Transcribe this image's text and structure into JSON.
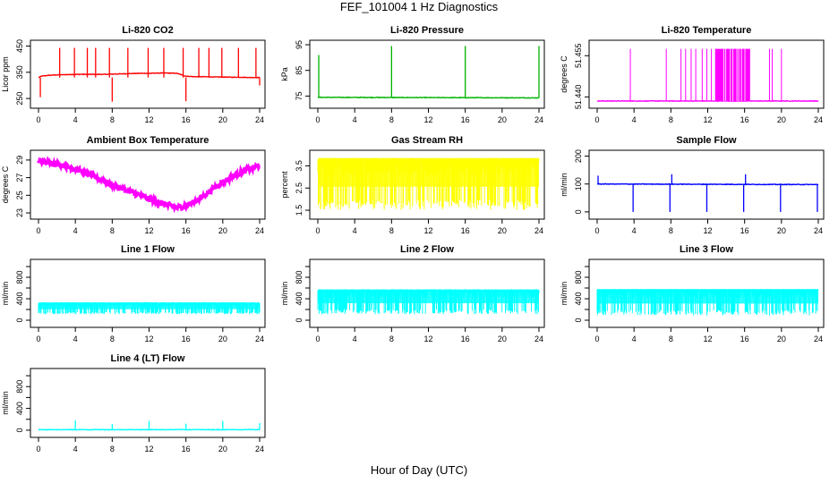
{
  "figure": {
    "title": "FEF_101004  1 Hz Diagnostics",
    "xlabel": "Hour of Day (UTC)"
  },
  "chart_data": [
    {
      "type": "line",
      "title": "Li-820 CO2",
      "ylabel": "Licor ppm",
      "color": "#ff0000",
      "xlim": [
        0,
        24
      ],
      "xticks": [
        0,
        4,
        8,
        12,
        16,
        20,
        24
      ],
      "ylim": [
        230,
        455
      ],
      "yticks": [
        250,
        350,
        450
      ],
      "series": [
        {
          "x": [
            0,
            0.3,
            1,
            2,
            3,
            4,
            5,
            6,
            7,
            8,
            9,
            10,
            11,
            12,
            13,
            14,
            15,
            16,
            17,
            18,
            19,
            20,
            21,
            22,
            23,
            24
          ],
          "y": [
            330,
            335,
            338,
            340,
            341,
            342,
            342,
            342,
            342,
            343,
            344,
            345,
            346,
            346,
            347,
            347,
            346,
            335,
            333,
            333,
            332,
            332,
            331,
            331,
            330,
            330
          ]
        }
      ],
      "spikes": [
        {
          "x": 0.2,
          "to": 255
        },
        {
          "x": 2.3,
          "to": 443
        },
        {
          "x": 3.9,
          "to": 443
        },
        {
          "x": 5.3,
          "to": 443
        },
        {
          "x": 6.2,
          "to": 443
        },
        {
          "x": 7.7,
          "to": 443
        },
        {
          "x": 8.0,
          "to": 238
        },
        {
          "x": 9.7,
          "to": 443
        },
        {
          "x": 11.9,
          "to": 443
        },
        {
          "x": 13.6,
          "to": 443
        },
        {
          "x": 15.7,
          "to": 443
        },
        {
          "x": 16.0,
          "to": 240
        },
        {
          "x": 17.4,
          "to": 443
        },
        {
          "x": 18.5,
          "to": 443
        },
        {
          "x": 19.9,
          "to": 443
        },
        {
          "x": 21.7,
          "to": 443
        },
        {
          "x": 23.6,
          "to": 443
        },
        {
          "x": 24.0,
          "to": 300
        }
      ]
    },
    {
      "type": "line",
      "title": "Li-820 Pressure",
      "ylabel": "kPa",
      "color": "#00b400",
      "xlim": [
        0,
        24
      ],
      "xticks": [
        0,
        4,
        8,
        12,
        16,
        20,
        24
      ],
      "ylim": [
        72,
        95
      ],
      "yticks": [
        75,
        85,
        95
      ],
      "series": [
        {
          "x": [
            0,
            24
          ],
          "y": [
            74.5,
            74.3
          ]
        }
      ],
      "spikes": [
        {
          "x": 0.1,
          "to": 91
        },
        {
          "x": 8.0,
          "to": 94.5
        },
        {
          "x": 16.0,
          "to": 94.5
        },
        {
          "x": 24.0,
          "to": 94.5
        }
      ]
    },
    {
      "type": "line",
      "title": "Li-820 Temperature",
      "ylabel": "degrees C",
      "color": "#ff00ff",
      "xlim": [
        0,
        24
      ],
      "xticks": [
        0,
        4,
        8,
        12,
        16,
        20,
        24
      ],
      "ylim": [
        51.4375,
        51.459
      ],
      "yticks": [
        51.44,
        51.455
      ],
      "yticklabels": [
        "51.440",
        "51.455"
      ],
      "extra_tick_labels": [
        "51.455"
      ],
      "series": [
        {
          "x": [
            0,
            24
          ],
          "y": [
            51.4385,
            51.4385
          ]
        }
      ],
      "spikes_x": [
        3.6,
        7.5,
        9.1,
        9.6,
        10.2,
        10.7,
        11.4,
        11.9,
        12.4,
        18.7,
        19.0,
        20.0
      ],
      "spike_to": 51.4575,
      "dense_band_x": [
        12.8,
        16.6
      ]
    },
    {
      "type": "line",
      "title": "Ambient Box Temperature",
      "ylabel": "degrees C",
      "color": "#ff00ff",
      "xlim": [
        0,
        24
      ],
      "xticks": [
        0,
        4,
        8,
        12,
        16,
        20,
        24
      ],
      "ylim": [
        22.8,
        29.6
      ],
      "yticks": [
        23,
        25,
        27,
        29
      ],
      "series": [
        {
          "x": [
            0,
            1,
            2,
            3,
            4,
            5,
            6,
            7,
            8,
            9,
            10,
            11,
            12,
            13,
            14,
            15,
            16,
            17,
            18,
            19,
            20,
            21,
            22,
            23,
            24
          ],
          "y": [
            28.8,
            28.8,
            28.6,
            28.3,
            28.0,
            27.6,
            27.2,
            26.7,
            26.2,
            25.8,
            25.4,
            25.0,
            24.6,
            24.2,
            23.9,
            23.6,
            23.8,
            24.3,
            25.0,
            25.8,
            26.5,
            27.1,
            27.6,
            28.0,
            28.4
          ]
        }
      ],
      "noise": 0.3
    },
    {
      "type": "line",
      "title": "Gas Stream RH",
      "ylabel": "percent",
      "color": "#ffff00",
      "xlim": [
        0,
        24
      ],
      "xticks": [
        0,
        4,
        8,
        12,
        16,
        20,
        24
      ],
      "ylim": [
        1.3,
        4.0
      ],
      "yticks": [
        1.5,
        2.5,
        3.5
      ],
      "series": [
        {
          "x": [
            0,
            24
          ],
          "y": [
            3.6,
            3.6
          ]
        }
      ],
      "band": [
        1.5,
        3.85
      ]
    },
    {
      "type": "line",
      "title": "Sample Flow",
      "ylabel": "ml/min",
      "color": "#0000ff",
      "xlim": [
        0,
        24
      ],
      "xticks": [
        0,
        4,
        8,
        12,
        16,
        20,
        24
      ],
      "ylim": [
        -10,
        205
      ],
      "yticks": [
        0,
        100,
        200
      ],
      "series": [
        {
          "x": [
            0,
            24
          ],
          "y": [
            100,
            98
          ]
        }
      ],
      "spikes": [
        {
          "x": 0.1,
          "to": 130
        },
        {
          "x": 3.9,
          "to": 0
        },
        {
          "x": 7.9,
          "to": 0
        },
        {
          "x": 8.1,
          "to": 135
        },
        {
          "x": 11.9,
          "to": 0
        },
        {
          "x": 15.9,
          "to": 0
        },
        {
          "x": 16.1,
          "to": 135
        },
        {
          "x": 19.9,
          "to": 0
        },
        {
          "x": 23.9,
          "to": 0
        }
      ]
    },
    {
      "type": "line",
      "title": "Line 1 Flow",
      "ylabel": "ml/min",
      "color": "#00ffff",
      "xlim": [
        0,
        24
      ],
      "xticks": [
        0,
        4,
        8,
        12,
        16,
        20,
        24
      ],
      "ylim": [
        -50,
        1050
      ],
      "yticks": [
        0,
        200,
        400,
        600,
        800,
        1000
      ],
      "yticklabels": [
        "0",
        "400",
        "800"
      ],
      "series": [
        {
          "x": [
            0,
            24
          ],
          "y": [
            320,
            320
          ]
        }
      ],
      "band": [
        110,
        320
      ]
    },
    {
      "type": "line",
      "title": "Line 2 Flow",
      "ylabel": "ml/min",
      "color": "#00ffff",
      "xlim": [
        0,
        24
      ],
      "xticks": [
        0,
        4,
        8,
        12,
        16,
        20,
        24
      ],
      "ylim": [
        -50,
        1050
      ],
      "yticks": [
        0,
        200,
        400,
        600,
        800,
        1000
      ],
      "yticklabels": [
        "0",
        "400",
        "800"
      ],
      "series": [
        {
          "x": [
            0,
            24
          ],
          "y": [
            560,
            560
          ]
        }
      ],
      "band": [
        110,
        570
      ]
    },
    {
      "type": "line",
      "title": "Line 3 Flow",
      "ylabel": "ml/min",
      "color": "#00ffff",
      "xlim": [
        0,
        24
      ],
      "xticks": [
        0,
        4,
        8,
        12,
        16,
        20,
        24
      ],
      "ylim": [
        -50,
        1050
      ],
      "yticks": [
        0,
        200,
        400,
        600,
        800,
        1000
      ],
      "yticklabels": [
        "0",
        "400",
        "800"
      ],
      "series": [
        {
          "x": [
            0,
            24
          ],
          "y": [
            560,
            560
          ]
        }
      ],
      "band": [
        90,
        580
      ]
    },
    {
      "type": "line",
      "title": "Line 4 (LT) Flow",
      "ylabel": "ml/min",
      "color": "#00ffff",
      "xlim": [
        0,
        24
      ],
      "xticks": [
        0,
        4,
        8,
        12,
        16,
        20,
        24
      ],
      "ylim": [
        -50,
        1050
      ],
      "yticks": [
        0,
        200,
        400,
        600,
        800,
        1000
      ],
      "yticklabels": [
        "0",
        "400",
        "800"
      ],
      "series": [
        {
          "x": [
            0,
            24
          ],
          "y": [
            10,
            10
          ]
        }
      ],
      "spikes": [
        {
          "x": 4.0,
          "to": 180
        },
        {
          "x": 8.0,
          "to": 110
        },
        {
          "x": 12.0,
          "to": 170
        },
        {
          "x": 16.0,
          "to": 120
        },
        {
          "x": 20.0,
          "to": 170
        },
        {
          "x": 24.0,
          "to": 130
        }
      ]
    }
  ]
}
